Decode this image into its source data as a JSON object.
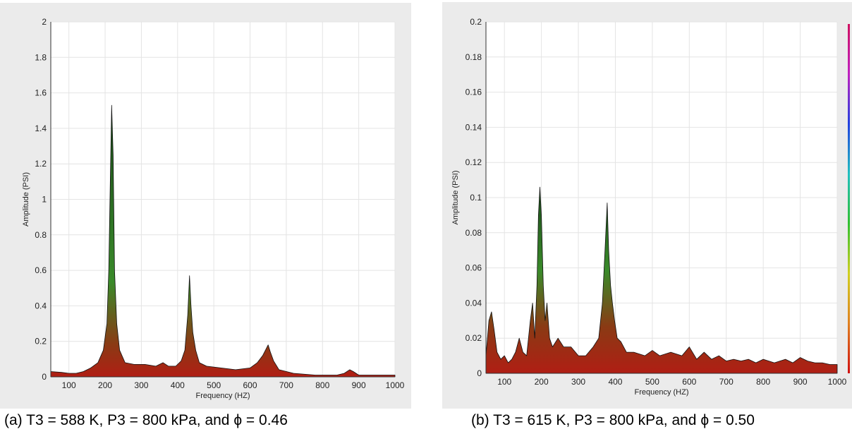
{
  "chart_data": [
    {
      "type": "area",
      "caption": "(a)  T3 = 588 K, P3 = 800 kPa, and ϕ = 0.46",
      "xlabel": "Frequency (HZ)",
      "ylabel": "Amplitude (PSI)",
      "xlim": [
        50,
        1000
      ],
      "ylim": [
        0,
        2
      ],
      "xticks": [
        "100",
        "200",
        "300",
        "400",
        "500",
        "600",
        "700",
        "800",
        "900",
        "1000"
      ],
      "yticks": [
        "0",
        "0.2",
        "0.4",
        "0.6",
        "0.8",
        "1",
        "1.2",
        "1.4",
        "1.6",
        "1.8",
        "2"
      ],
      "grid": true,
      "colorbar": false,
      "series": [
        {
          "x": [
            50,
            80,
            100,
            120,
            140,
            160,
            180,
            195,
            205,
            210,
            215,
            218,
            222,
            226,
            232,
            240,
            255,
            280,
            310,
            340,
            360,
            375,
            395,
            410,
            420,
            428,
            433,
            437,
            442,
            450,
            460,
            480,
            520,
            560,
            600,
            620,
            635,
            645,
            650,
            656,
            665,
            680,
            720,
            780,
            840,
            860,
            875,
            885,
            900,
            950,
            1000
          ],
          "y": [
            0.03,
            0.025,
            0.02,
            0.02,
            0.03,
            0.05,
            0.08,
            0.15,
            0.3,
            0.6,
            1.2,
            1.53,
            1.25,
            0.6,
            0.3,
            0.15,
            0.08,
            0.07,
            0.07,
            0.06,
            0.08,
            0.06,
            0.06,
            0.09,
            0.15,
            0.35,
            0.57,
            0.4,
            0.25,
            0.15,
            0.08,
            0.06,
            0.05,
            0.04,
            0.05,
            0.08,
            0.12,
            0.16,
            0.18,
            0.14,
            0.09,
            0.04,
            0.02,
            0.01,
            0.01,
            0.02,
            0.04,
            0.03,
            0.01,
            0.01,
            0.01
          ]
        }
      ]
    },
    {
      "type": "area",
      "caption": "(b)  T3 = 615 K, P3 = 800 kPa, and ϕ = 0.50",
      "xlabel": "Frequency (HZ)",
      "ylabel": "Amplitude (PSI)",
      "xlim": [
        50,
        1000
      ],
      "ylim": [
        0,
        0.2
      ],
      "xticks": [
        "100",
        "200",
        "300",
        "400",
        "500",
        "600",
        "700",
        "800",
        "900",
        "1000"
      ],
      "yticks": [
        "0",
        "0.02",
        "0.04",
        "0.06",
        "0.08",
        "0.1",
        "0.12",
        "0.14",
        "0.16",
        "0.18",
        "0.2"
      ],
      "grid": true,
      "colorbar": true,
      "series": [
        {
          "x": [
            50,
            58,
            65,
            72,
            80,
            90,
            100,
            110,
            120,
            130,
            140,
            150,
            160,
            170,
            176,
            182,
            188,
            192,
            196,
            200,
            205,
            210,
            215,
            222,
            230,
            245,
            260,
            280,
            300,
            320,
            340,
            355,
            365,
            372,
            378,
            382,
            387,
            392,
            398,
            405,
            415,
            430,
            450,
            480,
            500,
            520,
            550,
            580,
            600,
            620,
            640,
            660,
            680,
            700,
            720,
            740,
            760,
            780,
            800,
            830,
            860,
            880,
            900,
            920,
            940,
            960,
            980,
            1000
          ],
          "y": [
            0.01,
            0.03,
            0.035,
            0.025,
            0.012,
            0.008,
            0.01,
            0.006,
            0.008,
            0.012,
            0.02,
            0.012,
            0.01,
            0.03,
            0.04,
            0.02,
            0.05,
            0.09,
            0.106,
            0.09,
            0.05,
            0.03,
            0.04,
            0.02,
            0.015,
            0.02,
            0.015,
            0.015,
            0.01,
            0.01,
            0.015,
            0.02,
            0.04,
            0.07,
            0.097,
            0.07,
            0.05,
            0.04,
            0.03,
            0.02,
            0.018,
            0.012,
            0.012,
            0.01,
            0.013,
            0.01,
            0.012,
            0.01,
            0.015,
            0.008,
            0.012,
            0.008,
            0.01,
            0.007,
            0.008,
            0.007,
            0.008,
            0.006,
            0.008,
            0.006,
            0.008,
            0.006,
            0.009,
            0.007,
            0.006,
            0.006,
            0.005,
            0.005
          ]
        }
      ]
    }
  ],
  "colors": {
    "panel_bg": "#ebebeb",
    "plot_bg": "#ffffff",
    "grid": "#e4e4e4",
    "outline": "#111111",
    "peak_green": "#3a8a2a",
    "base_red": "#b01e14"
  }
}
